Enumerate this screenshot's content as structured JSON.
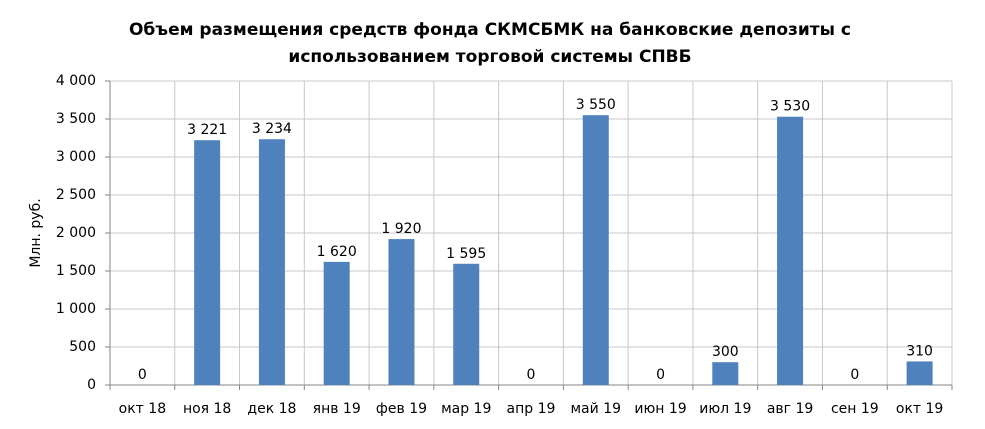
{
  "chart_data": {
    "type": "bar",
    "title": [
      "Объем размещения средств фонда СКМСБМК на банковские депозиты с",
      "использованием торговой системы СПВБ"
    ],
    "y_label": "Млн. руб.",
    "categories": [
      "окт 18",
      "ноя 18",
      "дек 18",
      "янв 19",
      "фев 19",
      "мар 19",
      "апр 19",
      "май 19",
      "июн 19",
      "июл 19",
      "авг 19",
      "сен 19",
      "окт 19"
    ],
    "values": [
      0,
      3221,
      3234,
      1620,
      1920,
      1595,
      0,
      3550,
      0,
      300,
      3530,
      0,
      310
    ],
    "value_labels": [
      "0",
      "3 221",
      "3 234",
      "1 620",
      "1 920",
      "1 595",
      "0",
      "3 550",
      "0",
      "300",
      "3 530",
      "0",
      "310"
    ],
    "color": "#4f81bd",
    "ylim": [
      0,
      4000
    ],
    "yticks": [
      0,
      500,
      {
        "value": 1000,
        "label": "1 000"
      },
      {
        "value": 1500,
        "label": "1 500"
      },
      {
        "value": 2000,
        "label": "2 000"
      },
      {
        "value": 2500,
        "label": "2 500"
      },
      {
        "value": 3000,
        "label": "3 000"
      },
      {
        "value": 3500,
        "label": "3 500"
      },
      {
        "value": 4000,
        "label": "4 000"
      }
    ],
    "grid": true
  }
}
